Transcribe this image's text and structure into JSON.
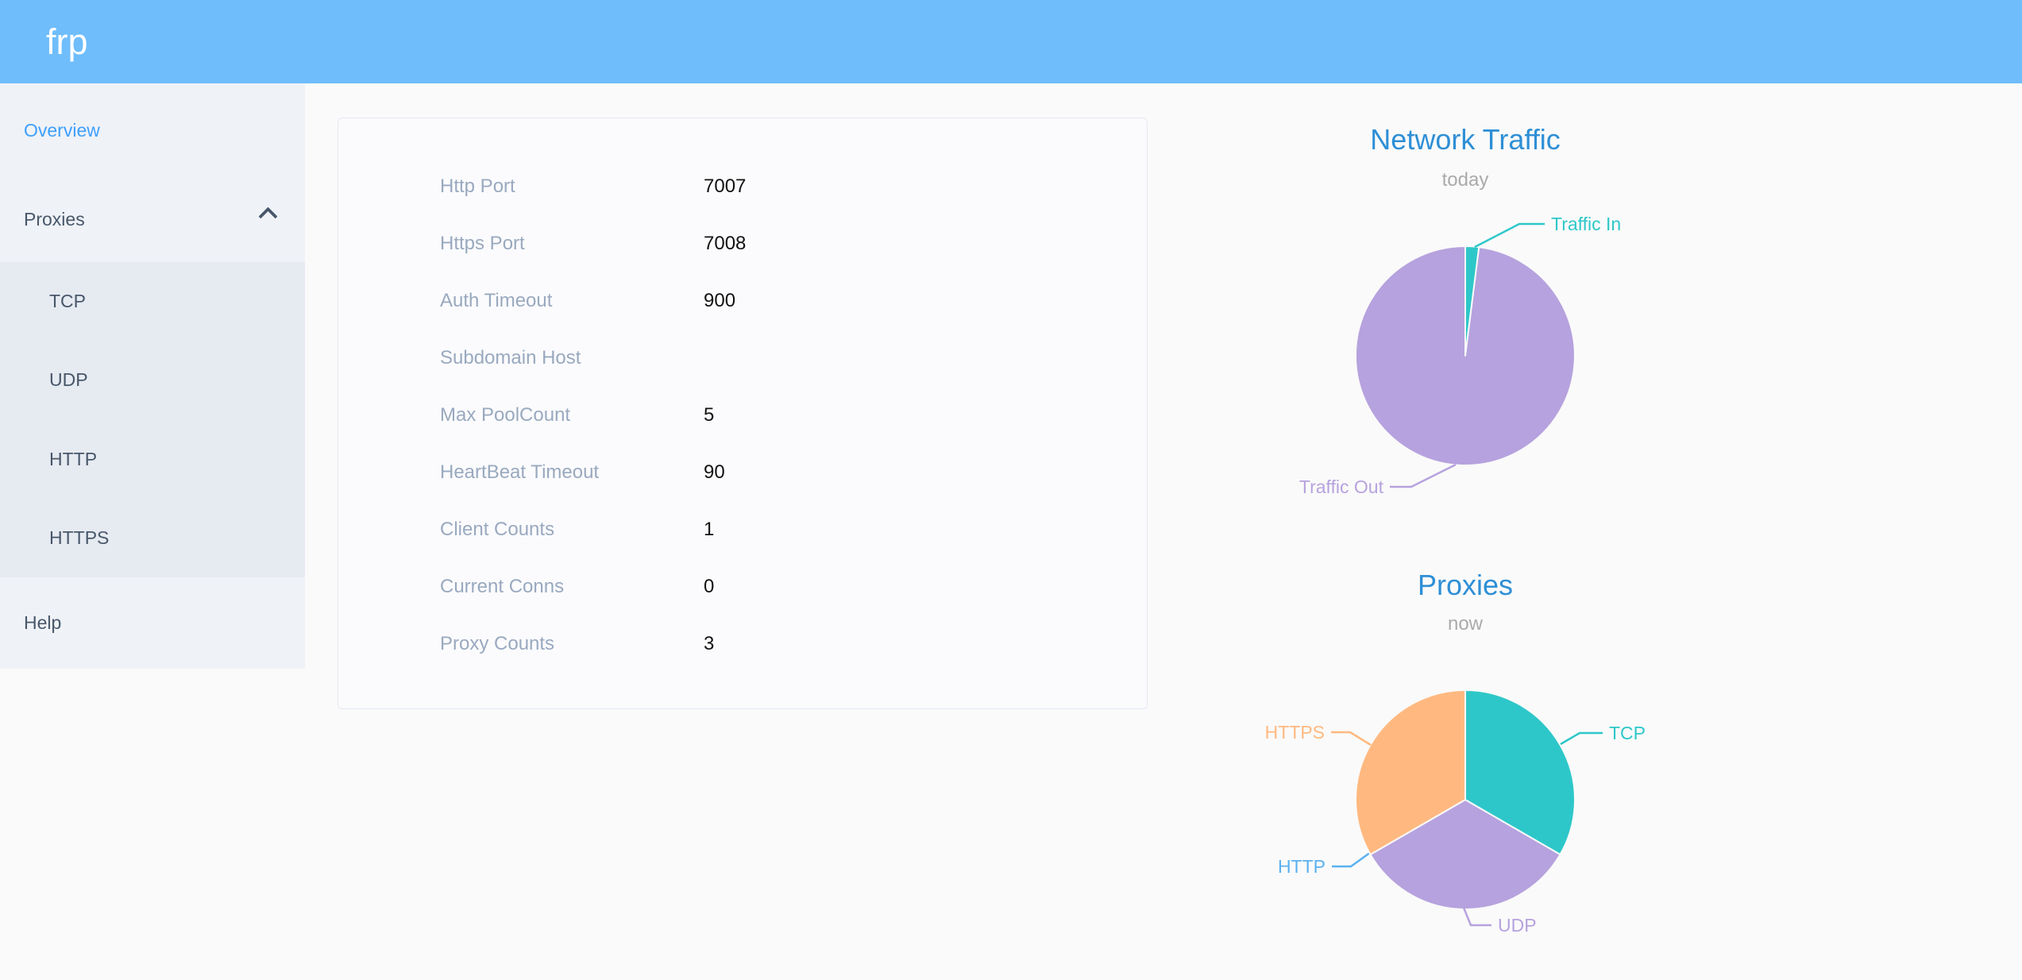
{
  "header": {
    "logo_text": "frp"
  },
  "sidebar": {
    "overview_label": "Overview",
    "proxies_label": "Proxies",
    "submenu": [
      "TCP",
      "UDP",
      "HTTP",
      "HTTPS"
    ],
    "help_label": "Help"
  },
  "server_info": {
    "rows": [
      {
        "label": "Http Port",
        "value": "7007"
      },
      {
        "label": "Https Port",
        "value": "7008"
      },
      {
        "label": "Auth Timeout",
        "value": "900"
      },
      {
        "label": "Subdomain Host",
        "value": ""
      },
      {
        "label": "Max PoolCount",
        "value": "5"
      },
      {
        "label": "HeartBeat Timeout",
        "value": "90"
      },
      {
        "label": "Client Counts",
        "value": "1"
      },
      {
        "label": "Current Conns",
        "value": "0"
      },
      {
        "label": "Proxy Counts",
        "value": "3"
      }
    ]
  },
  "colors": {
    "header_bg": "#6FBDFB",
    "active_link": "#3E9FFC",
    "chart_title_blue": "#2E8FD6",
    "teal": "#2EC7C9",
    "purple": "#B6A2DE",
    "blue": "#5AB1EF",
    "orange": "#FFB980",
    "info_label_gray": "#99A9BF"
  },
  "chart_data": [
    {
      "type": "pie",
      "title": "Network Traffic",
      "subtitle": "today",
      "unit": "percent-estimated-from-slice-angles",
      "legend": "off",
      "labels": "outside-with-leader-lines",
      "series": [
        {
          "name": "Traffic In",
          "value": 2,
          "color": "#2EC7C9"
        },
        {
          "name": "Traffic Out",
          "value": 98,
          "color": "#B6A2DE"
        }
      ]
    },
    {
      "type": "pie",
      "title": "Proxies",
      "subtitle": "now",
      "unit": "proxy-count",
      "legend": "off",
      "labels": "outside-with-leader-lines",
      "series": [
        {
          "name": "TCP",
          "value": 1,
          "color": "#2EC7C9"
        },
        {
          "name": "UDP",
          "value": 1,
          "color": "#B6A2DE"
        },
        {
          "name": "HTTP",
          "value": 0,
          "color": "#5AB1EF"
        },
        {
          "name": "HTTPS",
          "value": 1,
          "color": "#FFB980"
        }
      ]
    }
  ]
}
